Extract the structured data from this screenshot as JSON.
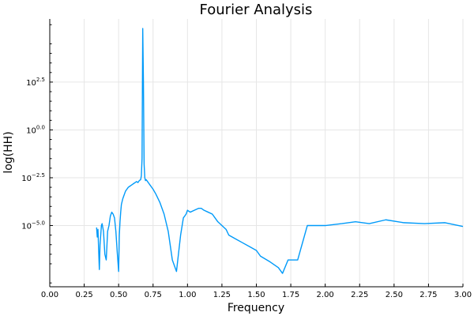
{
  "chart_data": {
    "type": "line",
    "title": "Fourier Analysis",
    "xlabel": "Frequency",
    "ylabel": "log(HH)",
    "xlim": [
      0.0,
      3.0
    ],
    "ylim_log10": [
      -8.2,
      5.8
    ],
    "yscale": "log10",
    "grid": true,
    "line_color": "#009af9",
    "xticks": [
      "0.00",
      "0.25",
      "0.50",
      "0.75",
      "1.00",
      "1.25",
      "1.50",
      "1.75",
      "2.00",
      "2.25",
      "2.50",
      "2.75",
      "3.00"
    ],
    "yticks": [
      {
        "base": "10",
        "exp": "2.5",
        "value": 2.5
      },
      {
        "base": "10",
        "exp": "0.0",
        "value": 0.0
      },
      {
        "base": "10",
        "exp": "−2.5",
        "value": -2.5
      },
      {
        "base": "10",
        "exp": "−5.0",
        "value": -5.0
      }
    ],
    "series": [
      {
        "x": [
          0.34,
          0.345,
          0.35,
          0.355,
          0.36,
          0.365,
          0.37,
          0.375,
          0.38,
          0.39,
          0.4,
          0.41,
          0.42,
          0.43,
          0.44,
          0.45,
          0.46,
          0.47,
          0.48,
          0.49,
          0.5,
          0.505,
          0.51,
          0.515,
          0.52,
          0.53,
          0.54,
          0.55,
          0.56,
          0.57,
          0.58,
          0.59,
          0.6,
          0.61,
          0.62,
          0.63,
          0.64,
          0.65,
          0.66,
          0.665,
          0.67,
          0.675,
          0.68,
          0.685,
          0.69,
          0.695,
          0.7,
          0.71,
          0.72,
          0.73,
          0.75,
          0.77,
          0.8,
          0.83,
          0.86,
          0.89,
          0.92,
          0.95,
          0.97,
          0.99,
          1.0,
          1.02,
          1.05,
          1.08,
          1.1,
          1.12,
          1.15,
          1.18,
          1.2,
          1.22,
          1.25,
          1.28,
          1.3,
          1.35,
          1.4,
          1.45,
          1.5,
          1.53,
          1.6,
          1.66,
          1.69,
          1.73,
          1.8,
          1.87,
          2.0,
          2.12,
          2.22,
          2.32,
          2.44,
          2.57,
          2.72,
          2.87,
          3.0
        ],
        "y": [
          -5.1,
          -5.6,
          -5.2,
          -6.3,
          -7.3,
          -6.0,
          -5.5,
          -5.0,
          -4.9,
          -5.3,
          -6.5,
          -6.8,
          -5.3,
          -5.0,
          -4.5,
          -4.3,
          -4.4,
          -4.6,
          -5.3,
          -6.4,
          -7.4,
          -5.5,
          -4.8,
          -4.3,
          -3.9,
          -3.6,
          -3.4,
          -3.2,
          -3.1,
          -3.0,
          -2.95,
          -2.9,
          -2.85,
          -2.8,
          -2.75,
          -2.7,
          -2.75,
          -2.65,
          -2.6,
          -2.4,
          -1.5,
          5.3,
          2.5,
          -1.8,
          -2.5,
          -2.65,
          -2.6,
          -2.7,
          -2.8,
          -2.9,
          -3.1,
          -3.35,
          -3.8,
          -4.4,
          -5.3,
          -6.8,
          -7.4,
          -5.5,
          -4.6,
          -4.4,
          -4.2,
          -4.3,
          -4.2,
          -4.1,
          -4.1,
          -4.2,
          -4.3,
          -4.4,
          -4.6,
          -4.8,
          -5.0,
          -5.2,
          -5.5,
          -5.7,
          -5.9,
          -6.1,
          -6.3,
          -6.6,
          -6.9,
          -7.2,
          -7.5,
          -6.8,
          -6.8,
          -5.0,
          -5.0,
          -4.9,
          -4.8,
          -4.9,
          -4.7,
          -4.85,
          -4.9,
          -4.85,
          -5.05
        ]
      }
    ]
  }
}
